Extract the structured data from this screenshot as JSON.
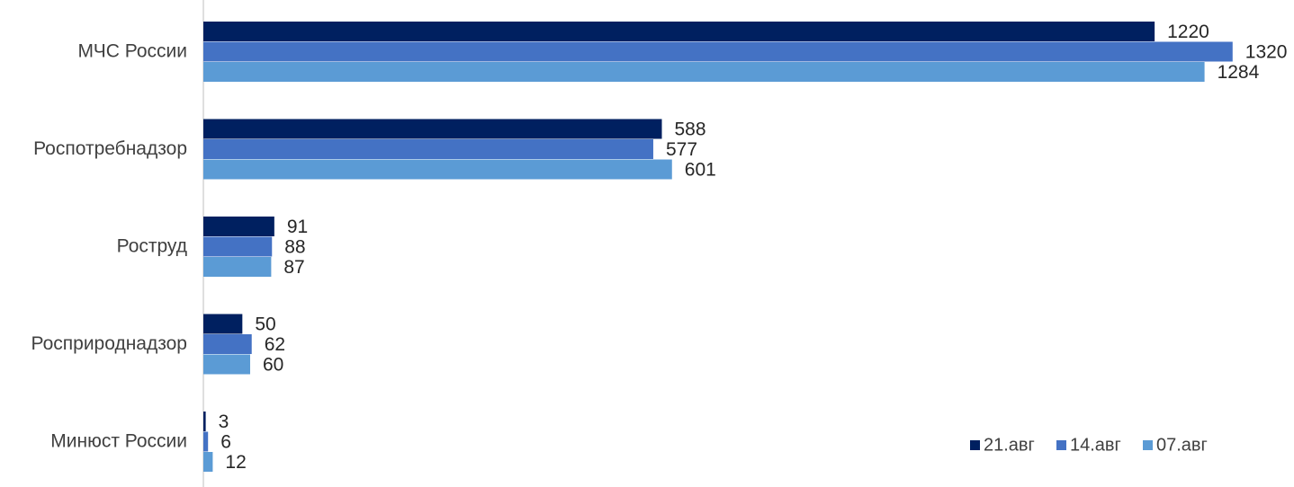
{
  "chart_data": {
    "type": "bar",
    "orientation": "horizontal",
    "title": "",
    "xlabel": "",
    "ylabel": "",
    "categories": [
      "МЧС России",
      "Роспотребнадзор",
      "Роструд",
      "Росприроднадзор",
      "Минюст России"
    ],
    "series": [
      {
        "name": "21.авг",
        "color": "#002060",
        "values": [
          1220,
          588,
          91,
          50,
          3
        ]
      },
      {
        "name": "14.авг",
        "color": "#4472C4",
        "values": [
          1320,
          577,
          88,
          62,
          6
        ]
      },
      {
        "name": "07.авг",
        "color": "#5B9BD5",
        "values": [
          1284,
          601,
          87,
          60,
          12
        ]
      }
    ],
    "xlim": [
      0,
      1400
    ],
    "grid": false,
    "legend_position": "bottom-right"
  }
}
